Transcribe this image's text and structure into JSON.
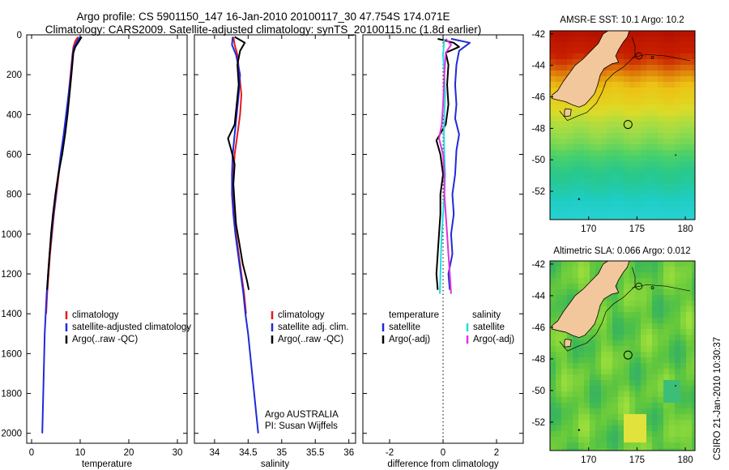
{
  "title": {
    "line1": "Argo profile: CS 5901150_147 16-Jan-2010 20100117_30 47.754S 174.071E",
    "line2": "Climatology: CARS2009. Satellite-adjusted climatology: synTS_20100115.nc (1.8d earlier)"
  },
  "colors": {
    "climatology": "#e41a1c",
    "satellite": "#1f2bd8",
    "argo": "#000000",
    "sal_satellite": "#22dede",
    "sal_argo": "#dd33dd",
    "land": "#f2c79b"
  },
  "notes": {
    "agency": "Argo AUSTRALIA",
    "pi": "PI: Susan Wijffels",
    "stamp": "CSIRO 21-Jan-2010 10:30:37"
  },
  "chart_data": [
    {
      "type": "line",
      "xlabel": "temperature",
      "ylabel": "",
      "xlim": [
        -1,
        32
      ],
      "ylim": [
        2050,
        0
      ],
      "xticks": [
        0,
        10,
        20,
        30
      ],
      "yticks": [
        0,
        200,
        400,
        600,
        800,
        1000,
        1200,
        1400,
        1600,
        1800,
        2000
      ],
      "legend": [
        "climatology",
        "satellite-adjusted climatology",
        "Argo(..raw -QC)"
      ],
      "legend_position": "lower-right",
      "series": [
        {
          "name": "climatology",
          "color": "#e41a1c",
          "points": [
            [
              9.6,
              10
            ],
            [
              9.0,
              30
            ],
            [
              8.6,
              60
            ],
            [
              8.4,
              100
            ],
            [
              8.0,
              200
            ],
            [
              7.6,
              300
            ],
            [
              7.2,
              400
            ],
            [
              6.7,
              500
            ],
            [
              6.1,
              600
            ],
            [
              5.6,
              700
            ],
            [
              5.1,
              800
            ],
            [
              4.6,
              900
            ],
            [
              4.2,
              1000
            ],
            [
              3.8,
              1100
            ],
            [
              3.5,
              1200
            ],
            [
              3.2,
              1300
            ],
            [
              3.0,
              1400
            ]
          ]
        },
        {
          "name": "satellite-adjusted climatology",
          "color": "#1f2bd8",
          "points": [
            [
              10.0,
              10
            ],
            [
              9.4,
              30
            ],
            [
              8.8,
              60
            ],
            [
              8.5,
              90
            ],
            [
              8.1,
              200
            ],
            [
              7.6,
              300
            ],
            [
              7.1,
              400
            ],
            [
              6.6,
              500
            ],
            [
              6.0,
              600
            ],
            [
              5.5,
              700
            ],
            [
              5.0,
              800
            ],
            [
              4.5,
              900
            ],
            [
              4.1,
              1000
            ],
            [
              3.7,
              1100
            ],
            [
              3.4,
              1200
            ],
            [
              3.1,
              1300
            ],
            [
              2.9,
              1400
            ],
            [
              2.7,
              1500
            ],
            [
              2.6,
              1600
            ],
            [
              2.5,
              1700
            ],
            [
              2.4,
              1800
            ],
            [
              2.3,
              1900
            ],
            [
              2.2,
              2000
            ]
          ]
        },
        {
          "name": "Argo(..raw -QC)",
          "color": "#000000",
          "points": [
            [
              10.3,
              10
            ],
            [
              9.8,
              30
            ],
            [
              9.0,
              60
            ],
            [
              8.6,
              90
            ],
            [
              8.2,
              200
            ],
            [
              7.8,
              300
            ],
            [
              7.4,
              400
            ],
            [
              6.9,
              500
            ],
            [
              6.3,
              600
            ],
            [
              5.5,
              700
            ],
            [
              4.9,
              800
            ],
            [
              4.4,
              900
            ],
            [
              4.0,
              1000
            ],
            [
              3.7,
              1100
            ],
            [
              3.4,
              1200
            ],
            [
              3.2,
              1280
            ]
          ]
        }
      ]
    },
    {
      "type": "line",
      "xlabel": "salinity",
      "ylabel": "",
      "xlim": [
        33.7,
        36.1
      ],
      "ylim": [
        2050,
        0
      ],
      "xticks": [
        34,
        34.5,
        35,
        35.5,
        36
      ],
      "yticks": [
        0,
        200,
        400,
        600,
        800,
        1000,
        1200,
        1400,
        1600,
        1800,
        2000
      ],
      "legend": [
        "climatology",
        "satellite adj. clim.",
        "Argo(..raw -QC)"
      ],
      "legend_position": "lower-right",
      "series": [
        {
          "name": "climatology",
          "color": "#e41a1c",
          "points": [
            [
              34.28,
              10
            ],
            [
              34.3,
              50
            ],
            [
              34.34,
              100
            ],
            [
              34.37,
              200
            ],
            [
              34.4,
              300
            ],
            [
              34.38,
              400
            ],
            [
              34.34,
              500
            ],
            [
              34.3,
              600
            ],
            [
              34.28,
              700
            ],
            [
              34.27,
              800
            ],
            [
              34.29,
              900
            ],
            [
              34.32,
              1000
            ],
            [
              34.36,
              1100
            ],
            [
              34.4,
              1200
            ],
            [
              34.44,
              1300
            ],
            [
              34.47,
              1400
            ]
          ]
        },
        {
          "name": "satellite adj. clim.",
          "color": "#1f2bd8",
          "points": [
            [
              34.27,
              10
            ],
            [
              34.26,
              50
            ],
            [
              34.32,
              100
            ],
            [
              34.38,
              200
            ],
            [
              34.36,
              300
            ],
            [
              34.33,
              400
            ],
            [
              34.3,
              500
            ],
            [
              34.27,
              600
            ],
            [
              34.26,
              700
            ],
            [
              34.26,
              800
            ],
            [
              34.28,
              900
            ],
            [
              34.31,
              1000
            ],
            [
              34.35,
              1100
            ],
            [
              34.39,
              1200
            ],
            [
              34.43,
              1300
            ],
            [
              34.46,
              1400
            ],
            [
              34.5,
              1500
            ],
            [
              34.53,
              1600
            ],
            [
              34.56,
              1700
            ],
            [
              34.59,
              1800
            ],
            [
              34.62,
              1900
            ],
            [
              34.65,
              2000
            ]
          ]
        },
        {
          "name": "Argo(..raw -QC)",
          "color": "#000000",
          "points": [
            [
              34.3,
              10
            ],
            [
              34.45,
              40
            ],
            [
              34.38,
              80
            ],
            [
              34.34,
              150
            ],
            [
              34.36,
              250
            ],
            [
              34.33,
              350
            ],
            [
              34.3,
              450
            ],
            [
              34.2,
              520
            ],
            [
              34.25,
              580
            ],
            [
              34.3,
              650
            ],
            [
              34.28,
              750
            ],
            [
              34.3,
              850
            ],
            [
              34.32,
              950
            ],
            [
              34.37,
              1050
            ],
            [
              34.42,
              1150
            ],
            [
              34.48,
              1230
            ],
            [
              34.51,
              1280
            ]
          ]
        }
      ]
    },
    {
      "type": "line",
      "xlabel": "difference from climatology",
      "ylabel": "",
      "xlim": [
        -3,
        3
      ],
      "ylim": [
        2050,
        0
      ],
      "xticks": [
        -2,
        0,
        2
      ],
      "yticks": [
        0,
        200,
        400,
        600,
        800,
        1000,
        1200,
        1400,
        1600,
        1800,
        2000
      ],
      "legend_headers": [
        "temperature",
        "salinity"
      ],
      "legend": [
        "satellite",
        "Argo(-adj)",
        "satellite",
        "Argo(-adj)"
      ],
      "legend_position": "lower-center",
      "series": [
        {
          "name": "temperature satellite",
          "color": "#1f2bd8",
          "points": [
            [
              0.3,
              20
            ],
            [
              1.0,
              40
            ],
            [
              0.6,
              80
            ],
            [
              0.5,
              150
            ],
            [
              0.45,
              250
            ],
            [
              0.5,
              350
            ],
            [
              0.45,
              420
            ],
            [
              0.6,
              500
            ],
            [
              0.5,
              580
            ],
            [
              0.45,
              700
            ],
            [
              0.35,
              800
            ],
            [
              0.4,
              900
            ],
            [
              0.3,
              1000
            ],
            [
              0.35,
              1100
            ],
            [
              0.2,
              1200
            ],
            [
              0.25,
              1280
            ]
          ]
        },
        {
          "name": "temperature Argo(-adj)",
          "color": "#000000",
          "points": [
            [
              -0.2,
              20
            ],
            [
              0.4,
              40
            ],
            [
              0.6,
              60
            ],
            [
              0.1,
              90
            ],
            [
              0.2,
              150
            ],
            [
              0.15,
              250
            ],
            [
              0.2,
              350
            ],
            [
              0.1,
              450
            ],
            [
              -0.25,
              530
            ],
            [
              -0.1,
              600
            ],
            [
              0.0,
              700
            ],
            [
              -0.1,
              800
            ],
            [
              -0.1,
              900
            ],
            [
              -0.15,
              1000
            ],
            [
              -0.2,
              1100
            ],
            [
              -0.25,
              1200
            ],
            [
              -0.2,
              1280
            ]
          ]
        },
        {
          "name": "salinity satellite",
          "color": "#22dede",
          "points": [
            [
              0.05,
              20
            ],
            [
              0.0,
              100
            ],
            [
              0.05,
              200
            ],
            [
              0.08,
              300
            ],
            [
              0.05,
              400
            ],
            [
              0.03,
              500
            ],
            [
              0.05,
              600
            ],
            [
              0.08,
              700
            ],
            [
              0.05,
              800
            ],
            [
              0.0,
              900
            ],
            [
              -0.05,
              1000
            ],
            [
              -0.08,
              1100
            ],
            [
              -0.1,
              1200
            ],
            [
              -0.12,
              1300
            ]
          ]
        },
        {
          "name": "salinity Argo(-adj)",
          "color": "#dd33dd",
          "points": [
            [
              0.1,
              20
            ],
            [
              0.3,
              50
            ],
            [
              0.1,
              90
            ],
            [
              0.05,
              200
            ],
            [
              0.0,
              350
            ],
            [
              -0.05,
              450
            ],
            [
              -0.15,
              520
            ],
            [
              0.0,
              600
            ],
            [
              0.05,
              700
            ],
            [
              0.05,
              800
            ],
            [
              0.1,
              900
            ],
            [
              0.15,
              1000
            ],
            [
              0.2,
              1100
            ],
            [
              0.25,
              1200
            ],
            [
              0.3,
              1300
            ]
          ]
        }
      ]
    },
    {
      "type": "heatmap",
      "title": "AMSR-E SST: 10.1 Argo: 10.2",
      "xlim": [
        166,
        181
      ],
      "ylim": [
        -53.8,
        -41.8
      ],
      "xticks": [
        170,
        175,
        180
      ],
      "yticks": [
        -42,
        -44,
        -46,
        -48,
        -50,
        -52
      ],
      "float_position": [
        174.071,
        -47.754
      ]
    },
    {
      "type": "heatmap",
      "title": "Altimetric SLA: 0.066 Argo: 0.012",
      "xlim": [
        166,
        181
      ],
      "ylim": [
        -53.8,
        -41.8
      ],
      "xticks": [
        170,
        175,
        180
      ],
      "yticks": [
        -42,
        -44,
        -46,
        -48,
        -50,
        -52
      ],
      "float_position": [
        174.071,
        -47.754
      ]
    }
  ]
}
